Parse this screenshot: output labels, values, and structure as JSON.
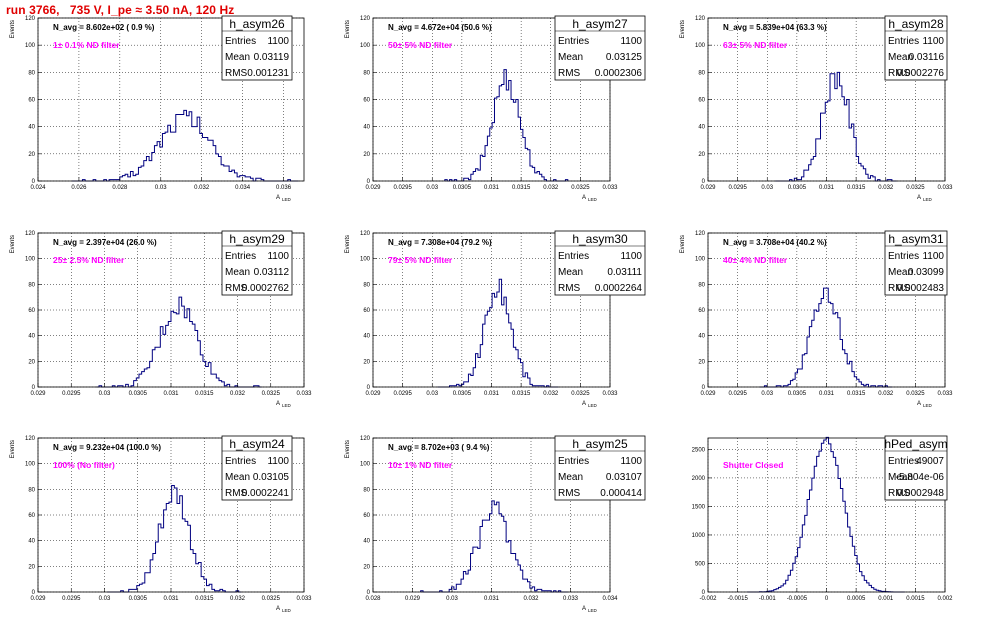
{
  "header": {
    "run_title": "run 3766,   735 V, I_pe ≈ 3.50 nA, 120 Hz"
  },
  "colors": {
    "title": "#e00000",
    "filter_label": "#ff00ff",
    "histogram_line": "#000080"
  },
  "stat_keys": [
    "Entries",
    "Mean",
    "RMS"
  ],
  "chart_data": [
    {
      "type": "histogram",
      "name": "h_asym26",
      "navg": "N_avg = 8.602e+02 ( 0.9 %)",
      "filter": "1± 0.1% ND filter",
      "stats": [
        "1100",
        "0.03119",
        "0.001231"
      ],
      "xlabel": "A",
      "xlabel_sub": "LED",
      "ylabel": "Events",
      "xlim": [
        0.024,
        0.037
      ],
      "ylim": [
        0,
        120
      ],
      "xticks": [
        0.024,
        0.026,
        0.028,
        0.03,
        0.032,
        0.034,
        0.036
      ],
      "xtick_labels": [
        "0.024",
        "0.026",
        "0.028",
        "0.03",
        "0.032",
        "0.034",
        "0.036"
      ],
      "yticks": [
        0,
        20,
        40,
        60,
        80,
        100,
        120
      ],
      "ytick_labels": [
        "0",
        "20",
        "40",
        "60",
        "80",
        "100",
        "120"
      ],
      "grid": true,
      "mean": 0.03119,
      "rms": 0.001231,
      "entries": 1100,
      "bin_width": 0.00013
    },
    {
      "type": "histogram",
      "name": "h_asym27",
      "navg": "N_avg = 4.672e+04 (50.6 %)",
      "filter": "50± 5% ND filter",
      "stats": [
        "1100",
        "0.03125",
        "0.0002306"
      ],
      "xlabel": "A",
      "xlabel_sub": "LED",
      "ylabel": "Events",
      "xlim": [
        0.029,
        0.033
      ],
      "ylim": [
        0,
        120
      ],
      "xticks": [
        0.029,
        0.0295,
        0.03,
        0.0305,
        0.031,
        0.0315,
        0.032,
        0.0325,
        0.033
      ],
      "xtick_labels": [
        "0.029",
        "0.0295",
        "0.03",
        "0.0305",
        "0.031",
        "0.0315",
        "0.032",
        "0.0325",
        "0.033"
      ],
      "yticks": [
        0,
        20,
        40,
        60,
        80,
        100,
        120
      ],
      "ytick_labels": [
        "0",
        "20",
        "40",
        "60",
        "80",
        "100",
        "120"
      ],
      "grid": true,
      "mean": 0.03125,
      "rms": 0.0002306,
      "entries": 1100,
      "bin_width": 4e-05
    },
    {
      "type": "histogram",
      "name": "h_asym28",
      "navg": "N_avg = 5.839e+04 (63.3 %)",
      "filter": "63± 5% ND filter",
      "stats": [
        "1100",
        "0.03116",
        "0.0002276"
      ],
      "xlabel": "A",
      "xlabel_sub": "LED",
      "ylabel": "Events",
      "xlim": [
        0.029,
        0.033
      ],
      "ylim": [
        0,
        120
      ],
      "xticks": [
        0.029,
        0.0295,
        0.03,
        0.0305,
        0.031,
        0.0315,
        0.032,
        0.0325,
        0.033
      ],
      "xtick_labels": [
        "0.029",
        "0.0295",
        "0.03",
        "0.0305",
        "0.031",
        "0.0315",
        "0.032",
        "0.0325",
        "0.033"
      ],
      "yticks": [
        0,
        20,
        40,
        60,
        80,
        100,
        120
      ],
      "ytick_labels": [
        "0",
        "20",
        "40",
        "60",
        "80",
        "100",
        "120"
      ],
      "grid": true,
      "mean": 0.03116,
      "rms": 0.0002276,
      "entries": 1100,
      "bin_width": 4e-05
    },
    {
      "type": "histogram",
      "name": "h_asym29",
      "navg": "N_avg = 2.397e+04 (26.0 %)",
      "filter": "25± 2.5% ND filter",
      "stats": [
        "1100",
        "0.03112",
        "0.0002762"
      ],
      "xlabel": "A",
      "xlabel_sub": "LED",
      "ylabel": "Events",
      "xlim": [
        0.029,
        0.033
      ],
      "ylim": [
        0,
        120
      ],
      "xticks": [
        0.029,
        0.0295,
        0.03,
        0.0305,
        0.031,
        0.0315,
        0.032,
        0.0325,
        0.033
      ],
      "xtick_labels": [
        "0.029",
        "0.0295",
        "0.03",
        "0.0305",
        "0.031",
        "0.0315",
        "0.032",
        "0.0325",
        "0.033"
      ],
      "yticks": [
        0,
        20,
        40,
        60,
        80,
        100,
        120
      ],
      "ytick_labels": [
        "0",
        "20",
        "40",
        "60",
        "80",
        "100",
        "120"
      ],
      "grid": true,
      "mean": 0.03112,
      "rms": 0.0002762,
      "entries": 1100,
      "bin_width": 4e-05
    },
    {
      "type": "histogram",
      "name": "h_asym30",
      "navg": "N_avg = 7.308e+04 (79.2 %)",
      "filter": "79± 5% ND filter",
      "stats": [
        "1100",
        "0.03111",
        "0.0002264"
      ],
      "xlabel": "A",
      "xlabel_sub": "LED",
      "ylabel": "Events",
      "xlim": [
        0.029,
        0.033
      ],
      "ylim": [
        0,
        120
      ],
      "xticks": [
        0.029,
        0.0295,
        0.03,
        0.0305,
        0.031,
        0.0315,
        0.032,
        0.0325,
        0.033
      ],
      "xtick_labels": [
        "0.029",
        "0.0295",
        "0.03",
        "0.0305",
        "0.031",
        "0.0315",
        "0.032",
        "0.0325",
        "0.033"
      ],
      "yticks": [
        0,
        20,
        40,
        60,
        80,
        100,
        120
      ],
      "ytick_labels": [
        "0",
        "20",
        "40",
        "60",
        "80",
        "100",
        "120"
      ],
      "grid": true,
      "mean": 0.03111,
      "rms": 0.0002264,
      "entries": 1100,
      "bin_width": 4e-05
    },
    {
      "type": "histogram",
      "name": "h_asym31",
      "navg": "N_avg = 3.708e+04 (40.2 %)",
      "filter": "40± 4% ND filter",
      "stats": [
        "1100",
        "0.03099",
        "0.0002483"
      ],
      "xlabel": "A",
      "xlabel_sub": "LED",
      "ylabel": "Events",
      "xlim": [
        0.029,
        0.033
      ],
      "ylim": [
        0,
        120
      ],
      "xticks": [
        0.029,
        0.0295,
        0.03,
        0.0305,
        0.031,
        0.0315,
        0.032,
        0.0325,
        0.033
      ],
      "xtick_labels": [
        "0.029",
        "0.0295",
        "0.03",
        "0.0305",
        "0.031",
        "0.0315",
        "0.032",
        "0.0325",
        "0.033"
      ],
      "yticks": [
        0,
        20,
        40,
        60,
        80,
        100,
        120
      ],
      "ytick_labels": [
        "0",
        "20",
        "40",
        "60",
        "80",
        "100",
        "120"
      ],
      "grid": true,
      "mean": 0.03099,
      "rms": 0.0002483,
      "entries": 1100,
      "bin_width": 4e-05
    },
    {
      "type": "histogram",
      "name": "h_asym24",
      "navg": "N_avg = 9.232e+04 (100.0 %)",
      "filter": "100% (No filter)",
      "stats": [
        "1100",
        "0.03105",
        "0.0002241"
      ],
      "xlabel": "A",
      "xlabel_sub": "LED",
      "ylabel": "Events",
      "xlim": [
        0.029,
        0.033
      ],
      "ylim": [
        0,
        120
      ],
      "xticks": [
        0.029,
        0.0295,
        0.03,
        0.0305,
        0.031,
        0.0315,
        0.032,
        0.0325,
        0.033
      ],
      "xtick_labels": [
        "0.029",
        "0.0295",
        "0.03",
        "0.0305",
        "0.031",
        "0.0315",
        "0.032",
        "0.0325",
        "0.033"
      ],
      "yticks": [
        0,
        20,
        40,
        60,
        80,
        100,
        120
      ],
      "ytick_labels": [
        "0",
        "20",
        "40",
        "60",
        "80",
        "100",
        "120"
      ],
      "grid": true,
      "mean": 0.03105,
      "rms": 0.0002241,
      "entries": 1100,
      "bin_width": 4e-05
    },
    {
      "type": "histogram",
      "name": "h_asym25",
      "navg": "N_avg = 8.702e+03 ( 9.4 %)",
      "filter": "10± 1% ND filter",
      "stats": [
        "1100",
        "0.03107",
        "0.000414"
      ],
      "xlabel": "A",
      "xlabel_sub": "LED",
      "ylabel": "Events",
      "xlim": [
        0.028,
        0.034
      ],
      "ylim": [
        0,
        120
      ],
      "xticks": [
        0.028,
        0.029,
        0.03,
        0.031,
        0.032,
        0.033,
        0.034
      ],
      "xtick_labels": [
        "0.028",
        "0.029",
        "0.03",
        "0.031",
        "0.032",
        "0.033",
        "0.034"
      ],
      "yticks": [
        0,
        20,
        40,
        60,
        80,
        100,
        120
      ],
      "ytick_labels": [
        "0",
        "20",
        "40",
        "60",
        "80",
        "100",
        "120"
      ],
      "grid": true,
      "mean": 0.03107,
      "rms": 0.000414,
      "entries": 1100,
      "bin_width": 6e-05
    },
    {
      "type": "histogram",
      "name": "hPed_asym",
      "navg": "",
      "filter": "Shutter Closed",
      "stats": [
        "49007",
        "-5.804e-06",
        "0.0002948"
      ],
      "xlabel": "",
      "xlabel_sub": "",
      "ylabel": "",
      "xlim": [
        -0.002,
        0.002
      ],
      "ylim": [
        0,
        2700
      ],
      "xticks": [
        -0.002,
        -0.0015,
        -0.001,
        -0.0005,
        0,
        0.0005,
        0.001,
        0.0015,
        0.002
      ],
      "xtick_labels": [
        "-0.002",
        "-0.0015",
        "-0.001",
        "-0.0005",
        "0",
        "0.0005",
        "0.001",
        "0.0015",
        "0.002"
      ],
      "yticks": [
        0,
        500,
        1000,
        1500,
        2000,
        2500
      ],
      "ytick_labels": [
        "0",
        "500",
        "1000",
        "1500",
        "2000",
        "2500"
      ],
      "grid": true,
      "mean": -5.804e-06,
      "rms": 0.0002948,
      "entries": 49007,
      "bin_width": 4e-05
    }
  ]
}
